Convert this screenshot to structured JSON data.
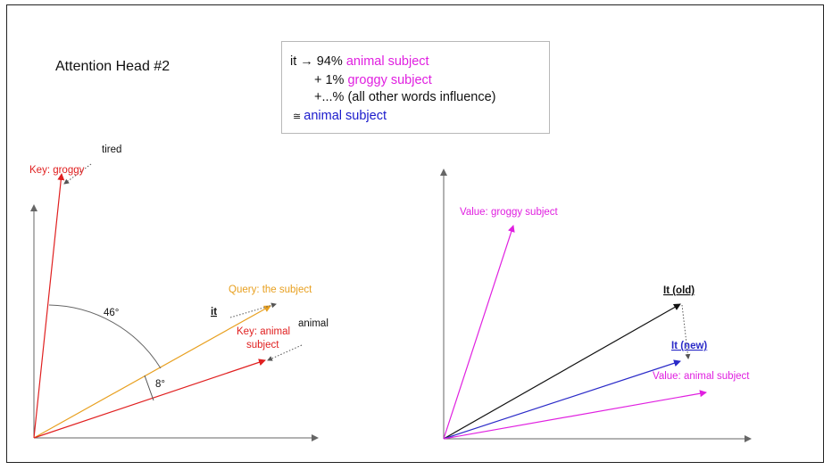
{
  "title": "Attention Head #2",
  "formula": {
    "line1": {
      "prefix": "it → 94% ",
      "term": "animal subject"
    },
    "line2": {
      "prefix": "+ 1% ",
      "term": "groggy subject"
    },
    "line3": {
      "text": "+...% (all other words influence)"
    },
    "line4": {
      "prefix": "≅ ",
      "term": "animal subject"
    }
  },
  "left_diagram": {
    "key_groggy": "Key: groggy",
    "tired": "tired",
    "query": "Query: the subject",
    "it": "it",
    "key_animal_line1": "Key: animal",
    "key_animal_line2": "subject",
    "animal": "animal",
    "angle_large": "46°",
    "angle_small": "8°"
  },
  "right_diagram": {
    "value_groggy": "Value: groggy subject",
    "it_old": "It (old)",
    "it_new": "It (new)",
    "value_animal": "Value: animal subject"
  },
  "colors": {
    "key": "#e02020",
    "query": "#e8a020",
    "value": "#e020e0",
    "it_new": "#2a2ac8",
    "it_old": "#111111",
    "axis": "#666666"
  }
}
